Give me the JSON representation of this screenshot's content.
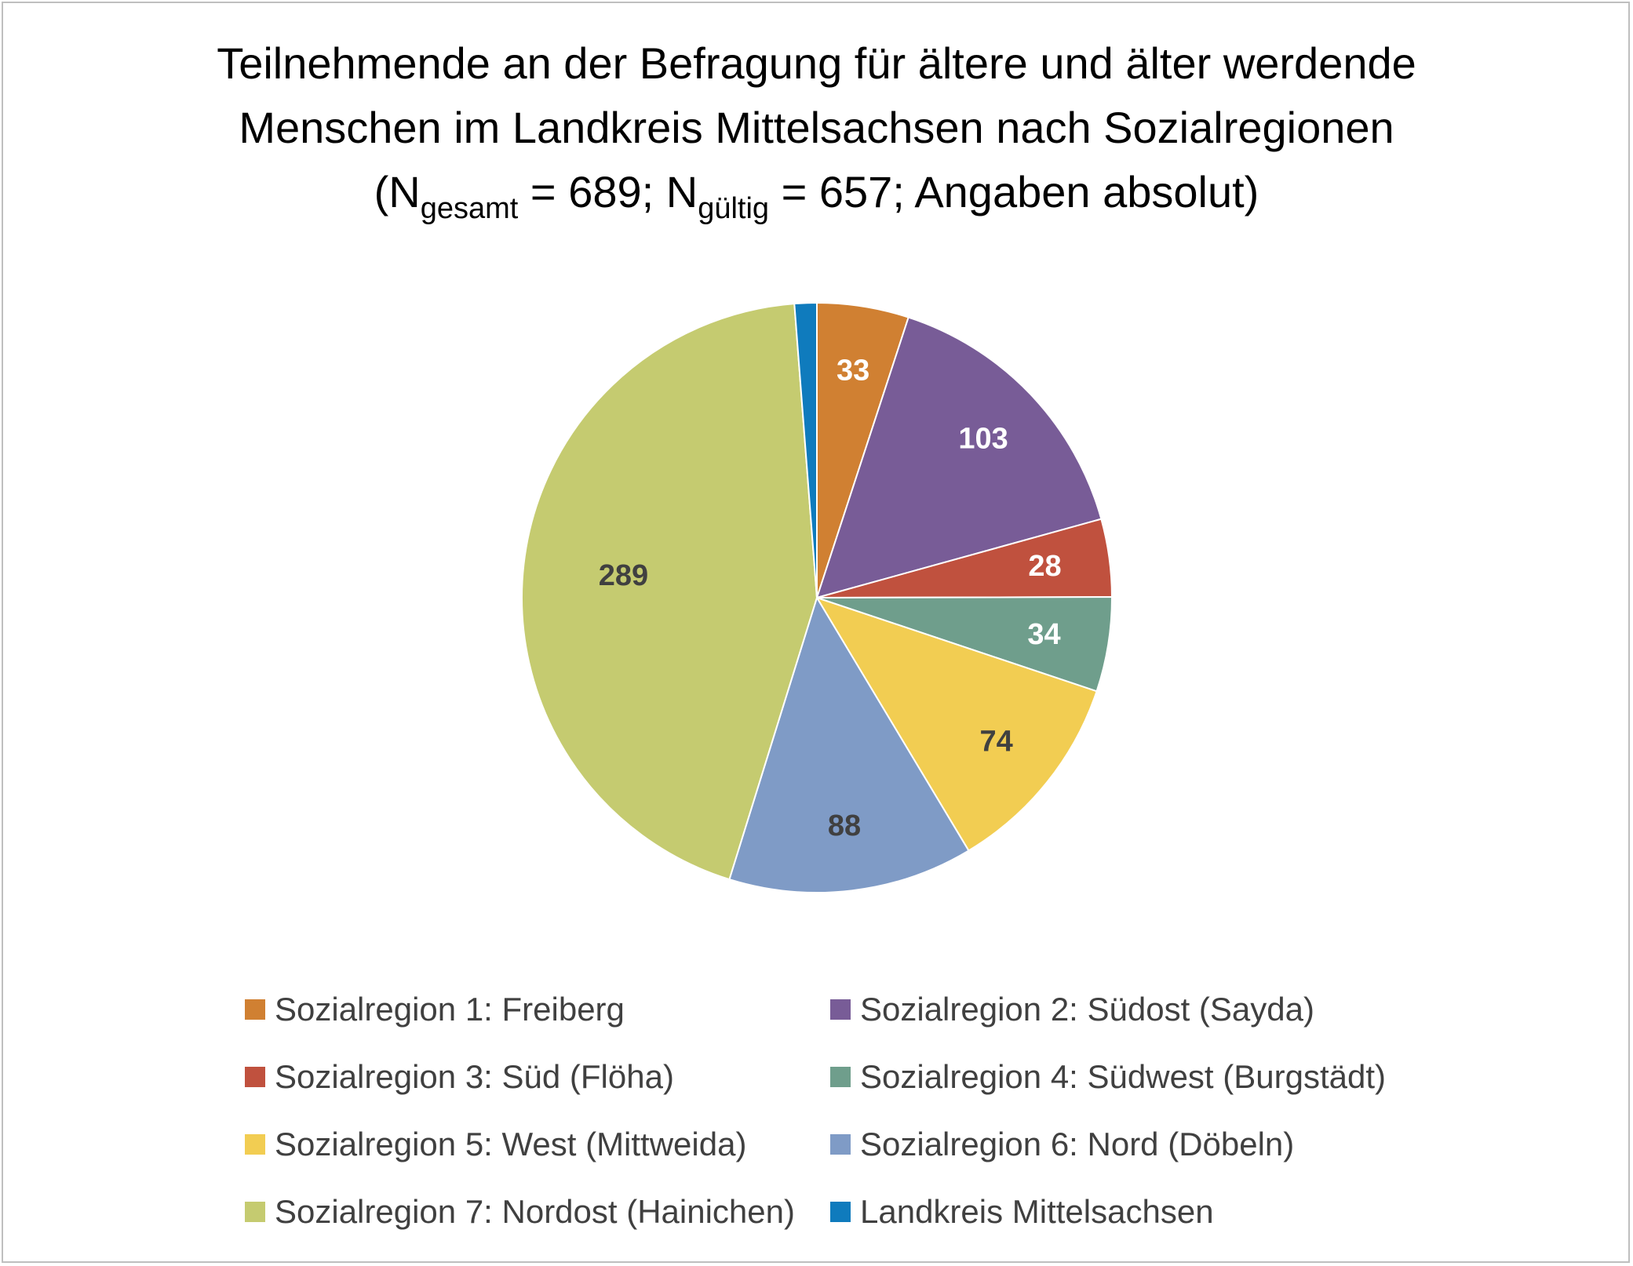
{
  "title": {
    "line1": "Teilnehmende an der Befragung für ältere und älter werdende",
    "line2": "Menschen im Landkreis Mittelsachsen nach Sozialregionen",
    "line3_open": "(N",
    "sub_gesamt": "gesamt",
    "eq_gesamt": " = 689; N",
    "sub_gueltig": "gültig",
    "eq_gueltig": " = 657; Angaben absolut)"
  },
  "chart_data": {
    "type": "pie",
    "title": "Teilnehmende an der Befragung für ältere und älter werdende Menschen im Landkreis Mittelsachsen nach Sozialregionen (Ngesamt = 689; Ngültig = 657; Angaben absolut)",
    "start_angle_deg": 0,
    "direction": "clockwise",
    "legend_position": "bottom",
    "slices": [
      {
        "name": "Sozialregion 1: Freiberg",
        "value": 33,
        "label": "33",
        "color": "#d08032",
        "label_color": "#ffffff"
      },
      {
        "name": "Sozialregion 2: Südost (Sayda)",
        "value": 103,
        "label": "103",
        "color": "#785c97",
        "label_color": "#ffffff"
      },
      {
        "name": "Sozialregion 3: Süd (Flöha)",
        "value": 28,
        "label": "28",
        "color": "#c0513e",
        "label_color": "#ffffff"
      },
      {
        "name": "Sozialregion 4: Südwest (Burgstädt)",
        "value": 34,
        "label": "34",
        "color": "#6f9e8c",
        "label_color": "#ffffff"
      },
      {
        "name": "Sozialregion 5: West (Mittweida)",
        "value": 74,
        "label": "74",
        "color": "#f2cd52",
        "label_color": "#404040"
      },
      {
        "name": "Sozialregion 6: Nord (Döbeln)",
        "value": 88,
        "label": "88",
        "color": "#7f9bc6",
        "label_color": "#404040"
      },
      {
        "name": "Sozialregion 7: Nordost (Hainichen)",
        "value": 289,
        "label": "289",
        "color": "#c5cb70",
        "label_color": "#404040"
      },
      {
        "name": "Landkreis Mittelsachsen",
        "value": 8,
        "label": "",
        "color": "#0f7bbd",
        "label_color": "#404040"
      }
    ]
  }
}
